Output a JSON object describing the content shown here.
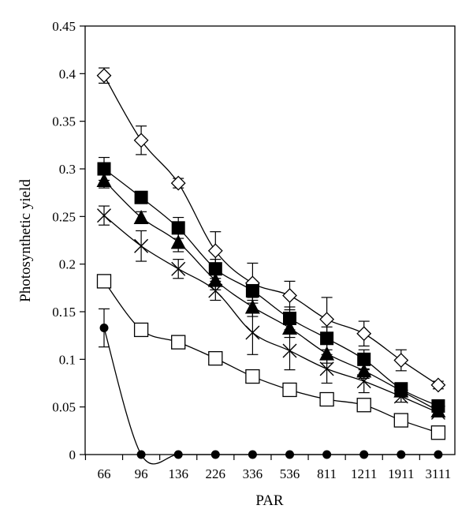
{
  "chart_data": {
    "type": "line",
    "xlabel": "PAR",
    "ylabel": "Photosynthetic yield",
    "categories": [
      "66",
      "96",
      "136",
      "226",
      "336",
      "536",
      "811",
      "1211",
      "1911",
      "3111"
    ],
    "ylim": [
      0,
      0.45
    ],
    "yticks": [
      "0",
      "0.05",
      "0.1",
      "0.15",
      "0.2",
      "0.25",
      "0.3",
      "0.35",
      "0.4",
      "0.45"
    ],
    "grid": false,
    "series": [
      {
        "marker": "diamond-open",
        "values": [
          0.398,
          0.33,
          0.285,
          0.214,
          0.18,
          0.167,
          0.142,
          0.127,
          0.099,
          0.073
        ],
        "errors": [
          0.008,
          0.015,
          0.005,
          0.02,
          0.021,
          0.015,
          0.023,
          0.013,
          0.011,
          0.004
        ]
      },
      {
        "marker": "square-filled",
        "values": [
          0.3,
          0.27,
          0.238,
          0.195,
          0.172,
          0.143,
          0.122,
          0.1,
          0.069,
          0.051
        ],
        "errors": [
          0.012,
          0.006,
          0.011,
          0.01,
          0.01,
          0.012,
          0.012,
          0.01,
          0.006,
          0.004
        ]
      },
      {
        "marker": "triangle-filled",
        "values": [
          0.288,
          0.249,
          0.223,
          0.183,
          0.155,
          0.133,
          0.106,
          0.088,
          0.067,
          0.046
        ],
        "errors": [
          0.008,
          0.006,
          0.01,
          0.01,
          0.01,
          0.01,
          0.01,
          0.008,
          0.006,
          0.004
        ]
      },
      {
        "marker": "x-cross",
        "values": [
          0.251,
          0.219,
          0.195,
          0.172,
          0.128,
          0.109,
          0.09,
          0.077,
          0.061,
          0.044
        ],
        "errors": [
          0.01,
          0.016,
          0.01,
          0.01,
          0.023,
          0.02,
          0.015,
          0.012,
          0.006,
          0.004
        ]
      },
      {
        "marker": "square-open",
        "values": [
          0.182,
          0.131,
          0.118,
          0.101,
          0.082,
          0.068,
          0.058,
          0.052,
          0.036,
          0.023
        ],
        "errors": [
          0.004,
          0.004,
          0.004,
          0.004,
          0.005,
          0.003,
          0.006,
          0.004,
          0.006,
          0.005
        ]
      },
      {
        "marker": "circle-filled",
        "values": [
          0.133,
          0.0,
          0.0,
          0.0,
          0.0,
          0.0,
          0.0,
          0.0,
          0.0,
          0.0
        ],
        "errors": [
          0.02,
          0,
          0,
          0,
          0,
          0,
          0,
          0,
          0,
          0
        ]
      }
    ]
  }
}
